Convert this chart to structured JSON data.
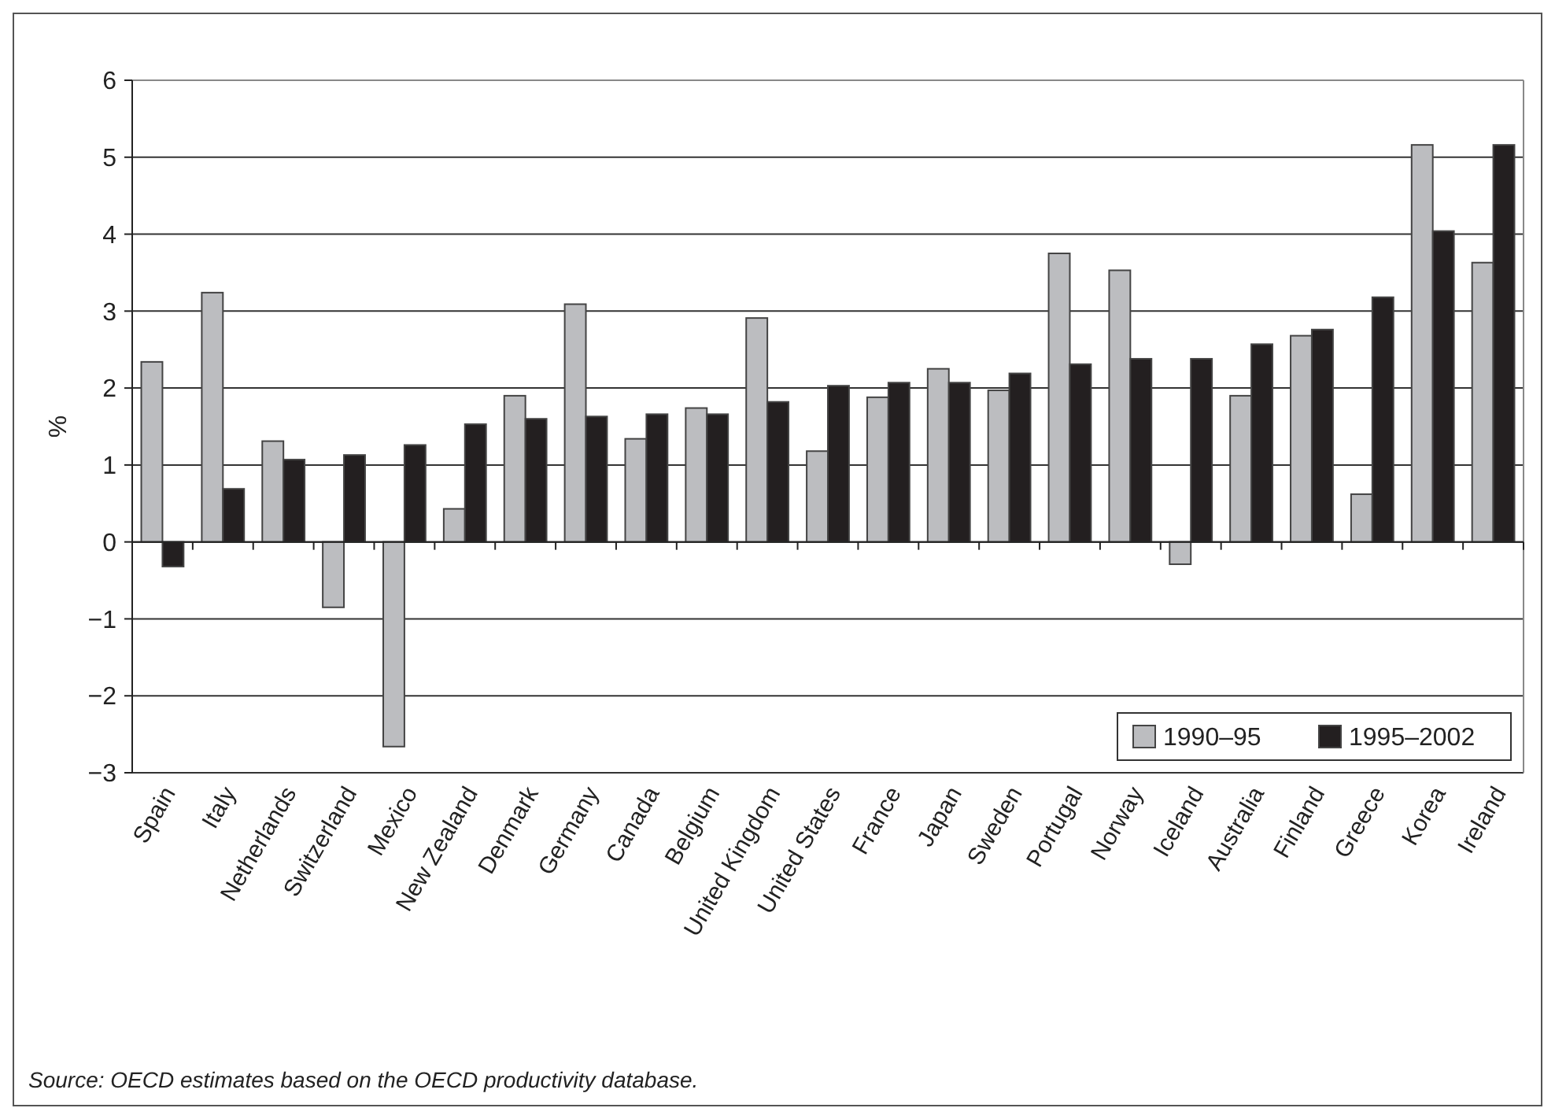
{
  "chart_data": {
    "type": "bar",
    "ylabel": "%",
    "categories": [
      "Spain",
      "Italy",
      "Netherlands",
      "Switzerland",
      "Mexico",
      "New Zealand",
      "Denmark",
      "Germany",
      "Canada",
      "Belgium",
      "United Kingdom",
      "United States",
      "France",
      "Japan",
      "Sweden",
      "Portugal",
      "Norway",
      "Iceland",
      "Australia",
      "Finland",
      "Greece",
      "Korea",
      "Ireland"
    ],
    "series": [
      {
        "name": "1990–95",
        "color": "#bcbdc0",
        "values": [
          2.34,
          3.24,
          1.31,
          -0.85,
          -2.66,
          0.43,
          1.9,
          3.09,
          1.34,
          1.74,
          2.91,
          1.18,
          1.88,
          2.25,
          1.97,
          3.75,
          3.53,
          -0.29,
          1.9,
          2.68,
          0.62,
          5.16,
          3.63
        ]
      },
      {
        "name": "1995–2002",
        "color": "#231f20",
        "values": [
          -0.32,
          0.69,
          1.07,
          1.13,
          1.26,
          1.53,
          1.6,
          1.63,
          1.66,
          1.66,
          1.82,
          2.03,
          2.07,
          2.07,
          2.19,
          2.31,
          2.38,
          2.38,
          2.57,
          2.76,
          3.18,
          4.04,
          5.16
        ]
      }
    ],
    "ylim": [
      -3,
      6
    ],
    "yticks": [
      {
        "value": -3,
        "label": "−3"
      },
      {
        "value": -2,
        "label": "−2"
      },
      {
        "value": -1,
        "label": "−1"
      },
      0,
      1,
      2,
      3,
      4,
      5,
      6
    ],
    "grid": "y",
    "legend": "bottom right",
    "annotations": [
      "Source: OECD estimates based on the OECD productivity database."
    ]
  }
}
